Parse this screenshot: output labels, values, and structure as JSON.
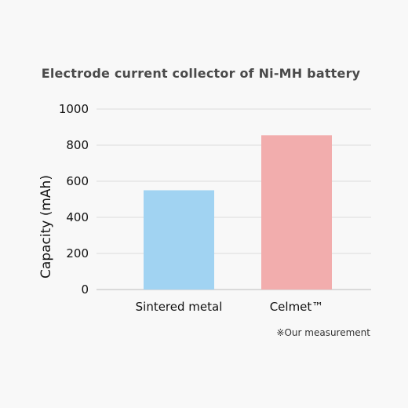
{
  "chart_data": {
    "type": "bar",
    "title": "Electrode current collector of Ni-MH battery",
    "ylabel": "Capacity (mAh)",
    "xlabel": "",
    "categories": [
      "Sintered metal",
      "Celmet™"
    ],
    "values": [
      550,
      855
    ],
    "bar_colors": [
      "#a1d3f2",
      "#f2adad"
    ],
    "ylim": [
      0,
      1000
    ],
    "yticks": [
      0,
      200,
      400,
      600,
      800,
      1000
    ],
    "grid": true,
    "legend": "none"
  },
  "footnote": "※Our measurement",
  "colors": {
    "background": "#f8f8f8",
    "gridline": "#dcdcdc"
  }
}
